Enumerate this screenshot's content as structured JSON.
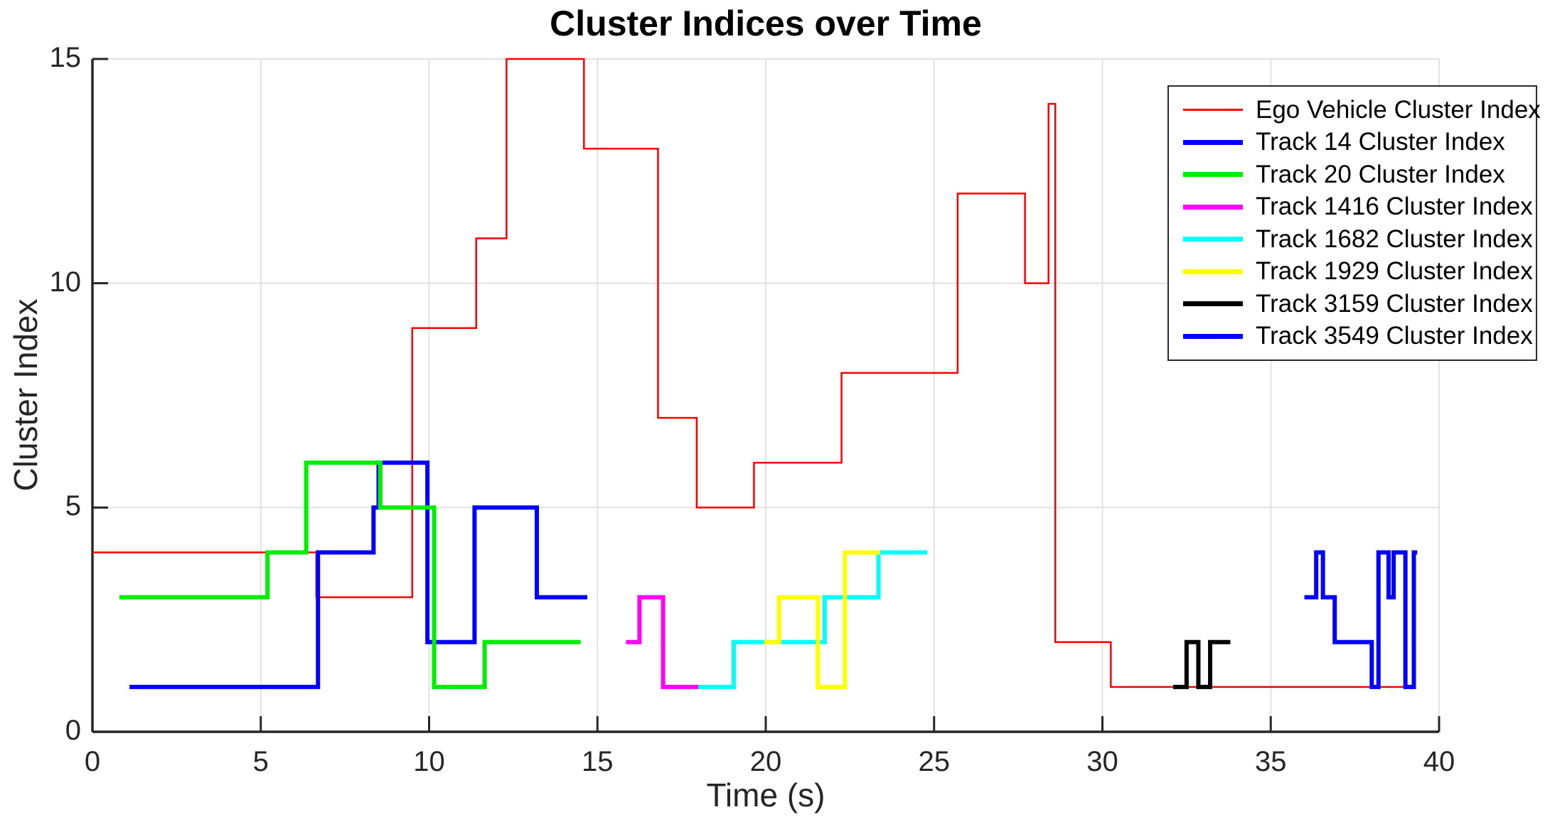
{
  "title": "Cluster Indices over Time",
  "chart_data": {
    "type": "line",
    "title": "Cluster Indices over Time",
    "xlabel": "Time (s)",
    "ylabel": "Cluster Index",
    "xlim": [
      0,
      40
    ],
    "ylim": [
      0,
      15
    ],
    "xticks": [
      0,
      5,
      10,
      15,
      20,
      25,
      30,
      35,
      40
    ],
    "yticks": [
      0,
      5,
      10,
      15
    ],
    "grid": true,
    "legend_position": "northeast",
    "axis_color": "#262626",
    "grid_color": "#e2e2e2",
    "series": [
      {
        "name": "Ego Vehicle Cluster Index",
        "color": "#ff0000",
        "line_width": 2.5,
        "steps": [
          [
            0,
            4
          ],
          [
            6.65,
            3
          ],
          [
            9.5,
            9
          ],
          [
            11.4,
            11
          ],
          [
            12.3,
            15
          ],
          [
            14.6,
            13
          ],
          [
            16.8,
            7
          ],
          [
            17.95,
            5
          ],
          [
            19.65,
            6
          ],
          [
            22.25,
            8
          ],
          [
            25.7,
            12
          ],
          [
            27.7,
            10
          ],
          [
            28.4,
            14
          ],
          [
            28.6,
            2
          ],
          [
            30.25,
            1
          ]
        ],
        "end_t": 39.3
      },
      {
        "name": "Track 14 Cluster Index",
        "color": "#0000ff",
        "line_width": 6,
        "steps": [
          [
            1.1,
            1
          ],
          [
            6.7,
            4
          ],
          [
            8.35,
            5
          ],
          [
            8.5,
            6
          ],
          [
            9.95,
            2
          ],
          [
            11.35,
            5
          ],
          [
            13.2,
            3
          ]
        ],
        "end_t": 14.7
      },
      {
        "name": "Track 20 Cluster Index",
        "color": "#00ee00",
        "line_width": 6,
        "steps": [
          [
            0.8,
            3
          ],
          [
            5.2,
            4
          ],
          [
            6.35,
            6
          ],
          [
            8.55,
            5
          ],
          [
            10.15,
            1
          ],
          [
            11.65,
            2
          ]
        ],
        "end_t": 14.5
      },
      {
        "name": "Track 1416 Cluster Index",
        "color": "#ff00ff",
        "line_width": 6,
        "steps": [
          [
            15.85,
            2
          ],
          [
            16.25,
            3
          ],
          [
            16.95,
            1
          ]
        ],
        "end_t": 18.0
      },
      {
        "name": "Track 1682 Cluster Index",
        "color": "#00ffff",
        "line_width": 6,
        "steps": [
          [
            18.0,
            1
          ],
          [
            19.05,
            2
          ],
          [
            21.75,
            3
          ],
          [
            23.35,
            4
          ]
        ],
        "end_t": 24.8
      },
      {
        "name": "Track 1929 Cluster Index",
        "color": "#ffff00",
        "line_width": 6,
        "steps": [
          [
            19.95,
            2
          ],
          [
            20.4,
            3
          ],
          [
            21.55,
            1
          ],
          [
            22.35,
            4
          ]
        ],
        "end_t": 23.4
      },
      {
        "name": "Track 3159 Cluster Index",
        "color": "#000000",
        "line_width": 6,
        "steps": [
          [
            32.1,
            1
          ],
          [
            32.5,
            2
          ],
          [
            32.85,
            1
          ],
          [
            33.2,
            2
          ]
        ],
        "end_t": 33.8
      },
      {
        "name": "Track 3549 Cluster Index",
        "color": "#0000ff",
        "line_width": 6,
        "steps": [
          [
            36.0,
            3
          ],
          [
            36.35,
            4
          ],
          [
            36.55,
            3
          ],
          [
            36.9,
            2
          ],
          [
            38.0,
            1
          ],
          [
            38.2,
            4
          ],
          [
            38.5,
            3
          ],
          [
            38.65,
            4
          ],
          [
            39.0,
            1
          ],
          [
            39.25,
            4
          ]
        ],
        "end_t": 39.35
      }
    ]
  }
}
